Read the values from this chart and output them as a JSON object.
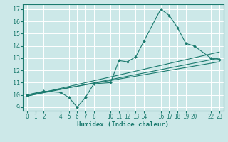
{
  "xlabel": "Humidex (Indice chaleur)",
  "ylabel": "",
  "bg_color": "#cce8e8",
  "grid_color": "#b8d8d8",
  "line_color": "#1a7a6e",
  "xlim": [
    -0.5,
    23.5
  ],
  "ylim": [
    8.7,
    17.4
  ],
  "yticks": [
    9,
    10,
    11,
    12,
    13,
    14,
    15,
    16,
    17
  ],
  "xticks": [
    0,
    1,
    2,
    4,
    5,
    6,
    7,
    8,
    10,
    11,
    12,
    13,
    14,
    16,
    17,
    18,
    19,
    20,
    22,
    23
  ],
  "series_x": [
    0,
    2,
    4,
    5,
    6,
    7,
    8,
    10,
    11,
    12,
    13,
    14,
    16,
    17,
    18,
    19,
    20,
    22,
    23
  ],
  "series_y": [
    10.0,
    10.3,
    10.2,
    9.8,
    9.0,
    9.8,
    10.9,
    11.0,
    12.8,
    12.7,
    13.1,
    14.4,
    17.0,
    16.5,
    15.5,
    14.2,
    14.0,
    13.0,
    12.9
  ],
  "trend1_x": [
    0,
    23
  ],
  "trend1_y": [
    9.9,
    13.5
  ],
  "trend2_x": [
    0,
    23
  ],
  "trend2_y": [
    9.9,
    13.0
  ],
  "trend3_x": [
    0,
    23
  ],
  "trend3_y": [
    10.0,
    12.7
  ]
}
